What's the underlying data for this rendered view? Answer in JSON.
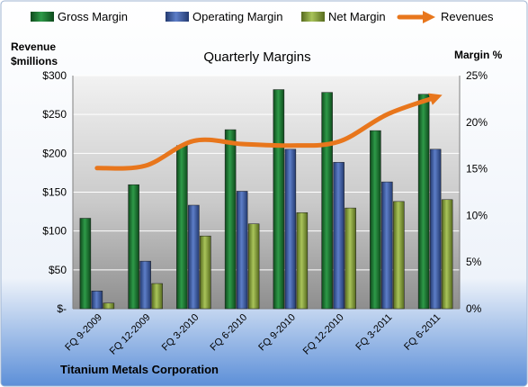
{
  "chart_data": {
    "type": "bar",
    "title": "Quarterly Margins",
    "left_axis_label_line1": "Revenue",
    "left_axis_label_line2": "$millions",
    "right_axis_label": "Margin %",
    "footer": "Titanium Metals Corporation",
    "categories": [
      "FQ 9-2009",
      "FQ 12-2009",
      "FQ 3-2010",
      "FQ 6-2010",
      "FQ 9-2010",
      "FQ 12-2010",
      "FQ 3-2011",
      "FQ 6-2011"
    ],
    "left_axis": {
      "min": 0,
      "max": 300,
      "ticks": [
        "$-",
        "$50",
        "$100",
        "$150",
        "$200",
        "$250",
        "$300"
      ]
    },
    "right_axis": {
      "min": 0,
      "max": 25,
      "ticks": [
        "0%",
        "5%",
        "10%",
        "15%",
        "20%",
        "25%"
      ]
    },
    "series": [
      {
        "name": "Gross Margin",
        "axis": "right",
        "kind": "bar",
        "color": "#1E7B34",
        "values": [
          9.7,
          13.3,
          17.5,
          19.2,
          23.5,
          23.2,
          19.1,
          23.0
        ]
      },
      {
        "name": "Operating Margin",
        "axis": "right",
        "kind": "bar",
        "color": "#3F5FA8",
        "values": [
          1.9,
          5.1,
          11.1,
          12.6,
          17.1,
          15.7,
          13.6,
          17.1
        ]
      },
      {
        "name": "Net Margin",
        "axis": "right",
        "kind": "bar",
        "color": "#8DAA3D",
        "values": [
          0.6,
          2.7,
          7.8,
          9.1,
          10.3,
          10.8,
          11.5,
          11.7
        ]
      },
      {
        "name": "Revenues",
        "axis": "left",
        "kind": "line",
        "color": "#E8761C",
        "values": [
          181,
          184,
          216,
          212,
          210,
          215,
          250,
          272
        ]
      }
    ],
    "grid": true,
    "legend_position": "top"
  }
}
